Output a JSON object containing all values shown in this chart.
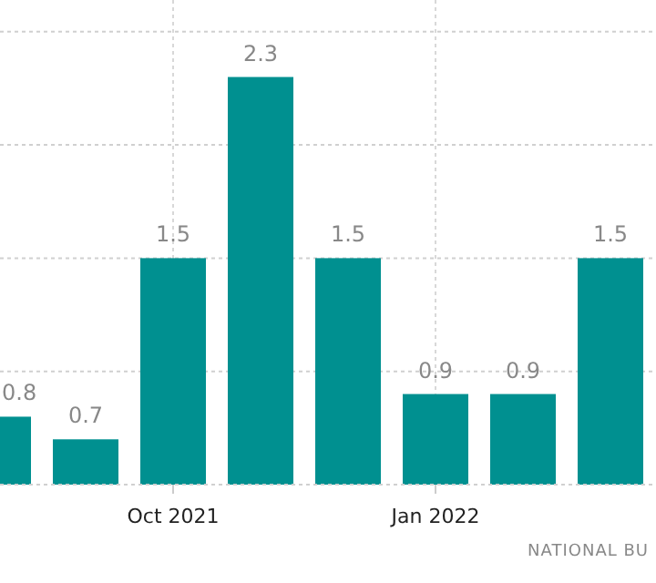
{
  "chart_data": {
    "type": "bar",
    "categories": [
      null,
      null,
      "Oct 2021",
      null,
      null,
      "Jan 2022",
      null,
      null
    ],
    "values": [
      0.8,
      0.7,
      1.5,
      2.3,
      1.5,
      0.9,
      0.9,
      1.5
    ],
    "color": "#009090",
    "ylim": [
      0.5,
      2.64
    ],
    "yticks": [
      {
        "value": 0.5,
        "label": null
      },
      {
        "value": 1,
        "label": null
      },
      {
        "value": 1.5,
        "label": null
      },
      {
        "value": 2,
        "label": null
      },
      {
        "value": 2.5,
        "label": null
      }
    ],
    "grid": true,
    "data_labels": true,
    "tick_labels": "x",
    "annotations": [
      "NATIONAL BU"
    ]
  }
}
